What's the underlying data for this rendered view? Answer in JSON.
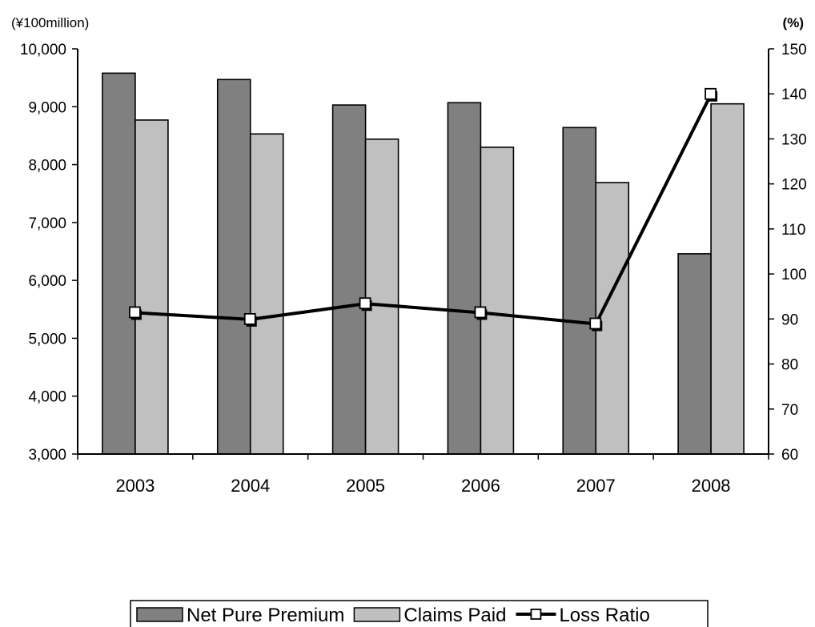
{
  "chart_data": {
    "type": "bar",
    "title": "",
    "categories": [
      "2003",
      "2004",
      "2005",
      "2006",
      "2007",
      "2008"
    ],
    "series": [
      {
        "name": "Net Pure Premium",
        "kind": "bar",
        "axis": "left",
        "color": "#808080",
        "values": [
          9580,
          9470,
          9030,
          9070,
          8640,
          6460
        ]
      },
      {
        "name": "Claims Paid",
        "kind": "bar",
        "axis": "left",
        "color": "#c0c0c0",
        "values": [
          8770,
          8530,
          8440,
          8300,
          7690,
          9050
        ]
      },
      {
        "name": "Loss Ratio",
        "kind": "line",
        "axis": "right",
        "color": "#000000",
        "marker": "hollow-square",
        "values": [
          91.4,
          89.9,
          93.4,
          91.4,
          88.9,
          139.9
        ]
      }
    ],
    "y_left": {
      "unit": "(¥100million)",
      "ylim": [
        3000,
        10000
      ],
      "ticks": [
        "3,000",
        "4,000",
        "5,000",
        "6,000",
        "7,000",
        "8,000",
        "9,000",
        "10,000"
      ]
    },
    "y_right": {
      "unit": "(%)",
      "ylim": [
        60,
        150
      ],
      "ticks": [
        "60",
        "70",
        "80",
        "90",
        "100",
        "110",
        "120",
        "130",
        "140",
        "150"
      ]
    },
    "grid": false,
    "legend": {
      "position": "bottom",
      "items": [
        "Net Pure Premium",
        "Claims Paid",
        "Loss Ratio"
      ]
    }
  }
}
